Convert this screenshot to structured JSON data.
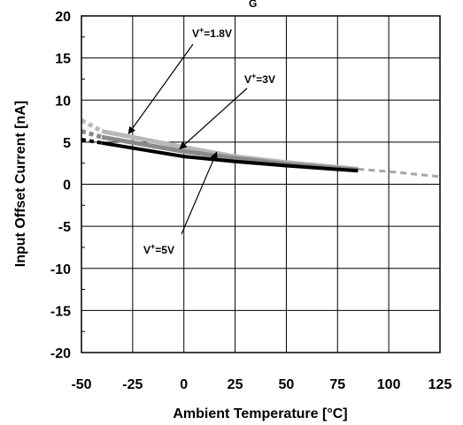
{
  "chart_data": {
    "type": "line",
    "title": "G",
    "xlabel": "Ambient Temperature [°C]",
    "ylabel": "Input Offset Current [nA]",
    "xlim": [
      -50,
      125
    ],
    "ylim": [
      -20,
      20
    ],
    "x_ticks": [
      -50,
      -25,
      0,
      25,
      50,
      75,
      100,
      125
    ],
    "y_ticks": [
      20,
      15,
      10,
      5,
      0,
      -5,
      -10,
      -15,
      -20
    ],
    "grid": true,
    "series": [
      {
        "name": "V+=1.8V",
        "color": "#b8b8b8",
        "style": "solid",
        "points": [
          [
            -40,
            6.3
          ],
          [
            0,
            4.4
          ],
          [
            25,
            3.3
          ],
          [
            50,
            2.6
          ],
          [
            85,
            1.8
          ]
        ],
        "extrapolated": [
          [
            -50,
            7.6
          ],
          [
            -40,
            6.3
          ]
        ]
      },
      {
        "name": "V+=3V",
        "color": "#8a8a8a",
        "style": "solid",
        "points": [
          [
            -40,
            5.6
          ],
          [
            0,
            3.9
          ],
          [
            25,
            3.1
          ],
          [
            50,
            2.4
          ],
          [
            85,
            1.7
          ]
        ],
        "extrapolated": [
          [
            -50,
            6.3
          ],
          [
            -40,
            5.6
          ]
        ]
      },
      {
        "name": "V+=5V",
        "color": "#000000",
        "style": "solid",
        "points": [
          [
            -40,
            4.9
          ],
          [
            0,
            3.3
          ],
          [
            25,
            2.7
          ],
          [
            50,
            2.2
          ],
          [
            85,
            1.6
          ]
        ],
        "extrapolated": [
          [
            -50,
            5.3
          ],
          [
            -40,
            4.9
          ]
        ]
      },
      {
        "name": "V+=1.8V",
        "color": "#a6a6a6",
        "style": "dashed",
        "points": [
          [
            85,
            1.8
          ],
          [
            100,
            1.5
          ],
          [
            125,
            0.9
          ]
        ]
      }
    ],
    "annotations": [
      {
        "text": "V+=1.8V",
        "base": "V",
        "sup": "+",
        "rest": "=1.8V",
        "target": [
          -27,
          6.0
        ]
      },
      {
        "text": "V+=3V",
        "base": "V",
        "sup": "+",
        "rest": "=3V",
        "target": [
          -2,
          4.2
        ]
      },
      {
        "text": "V+=5V",
        "base": "V",
        "sup": "+",
        "rest": "=5V",
        "target": [
          16,
          3.8
        ]
      }
    ]
  }
}
